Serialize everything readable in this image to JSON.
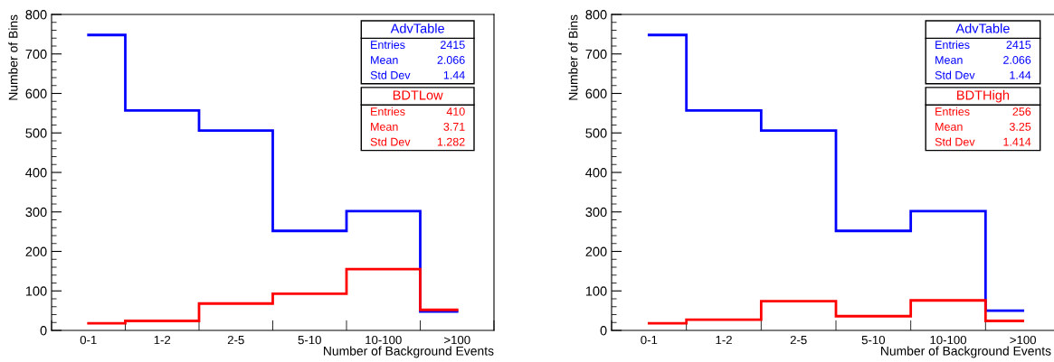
{
  "chart_data": [
    {
      "type": "step",
      "xlabel": "Number of Background Events",
      "ylabel": "Number of Bins",
      "categories": [
        "0-1",
        "1-2",
        "2-5",
        "5-10",
        "10-100",
        ">100"
      ],
      "ylim": [
        0,
        800
      ],
      "yticks": [
        0,
        100,
        200,
        300,
        400,
        500,
        600,
        700,
        800
      ],
      "legend": "top right",
      "series": [
        {
          "name": "AdvTable",
          "color": "#0000ff",
          "values": [
            748,
            557,
            506,
            252,
            302,
            48
          ]
        },
        {
          "name": "BDTLow",
          "color": "#ff0000",
          "values": [
            18,
            24,
            68,
            93,
            155,
            52
          ]
        }
      ],
      "annotations": [
        "Entries 2415",
        "Mean 2.066",
        "Std Dev 1.44",
        "Entries 410",
        "Mean 3.71",
        "Std Dev 1.282"
      ]
    },
    {
      "type": "step",
      "xlabel": "Number of Background Events",
      "ylabel": "Number of Bins",
      "categories": [
        "0-1",
        "1-2",
        "2-5",
        "5-10",
        "10-100",
        ">100"
      ],
      "ylim": [
        0,
        800
      ],
      "yticks": [
        0,
        100,
        200,
        300,
        400,
        500,
        600,
        700,
        800
      ],
      "legend": "top right",
      "series": [
        {
          "name": "AdvTable",
          "color": "#0000ff",
          "values": [
            748,
            557,
            506,
            252,
            302,
            50
          ]
        },
        {
          "name": "BDTHigh",
          "color": "#ff0000",
          "values": [
            18,
            27,
            74,
            36,
            76,
            24
          ]
        }
      ],
      "annotations": [
        "Entries 2415",
        "Mean 2.066",
        "Std Dev 1.44",
        "Entries 256",
        "Mean 3.25",
        "Std Dev 1.414"
      ]
    }
  ]
}
